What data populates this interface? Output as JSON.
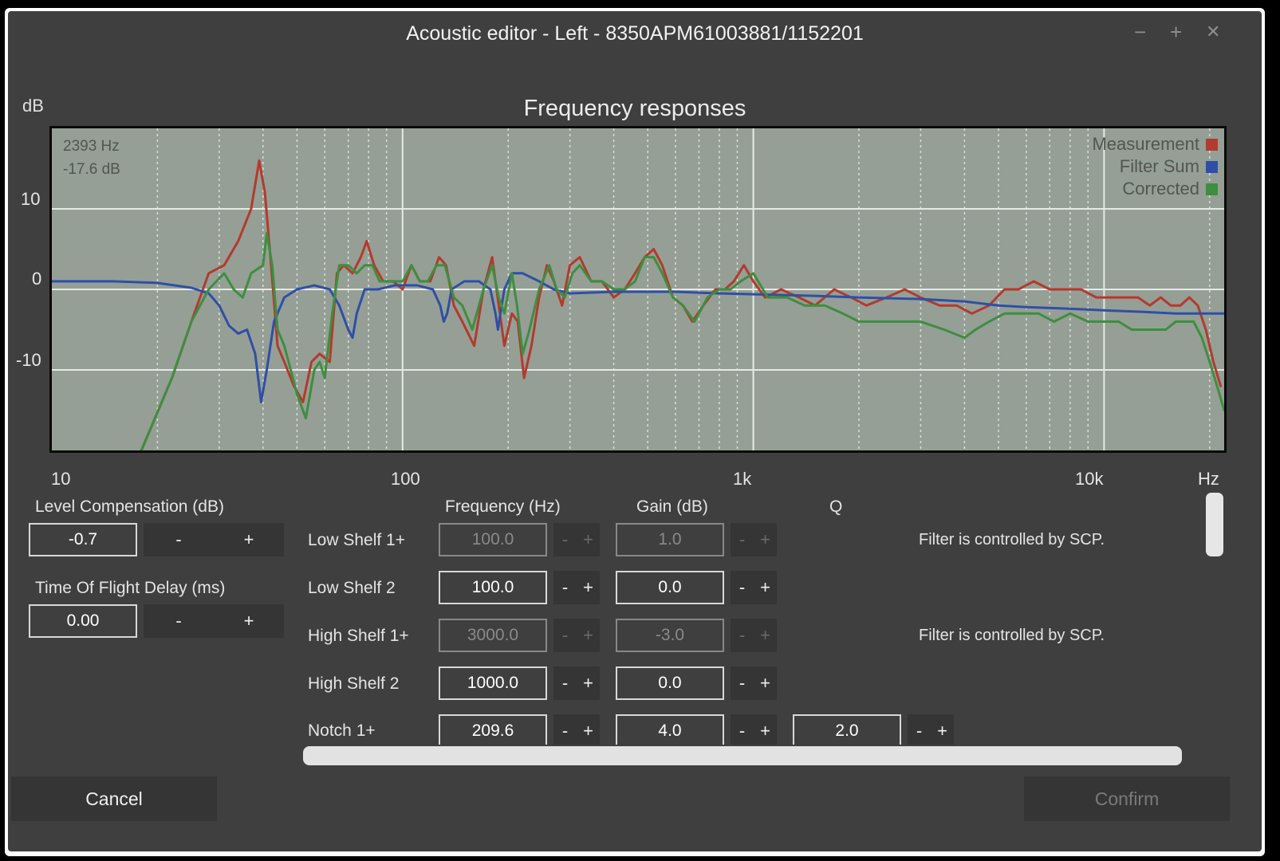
{
  "window": {
    "title": "Acoustic editor - Left - 8350APM61003881/1152201",
    "minimize_label": "−",
    "maximize_label": "+",
    "close_label": "✕"
  },
  "chart_data": {
    "type": "line",
    "title": "Frequency responses",
    "ylabel": "dB",
    "xlabel": "Hz",
    "x_scale": "log",
    "xlim": [
      10,
      22000
    ],
    "ylim": [
      -20,
      20
    ],
    "x_tick_labels": [
      "10",
      "100",
      "1k",
      "10k"
    ],
    "x_tick_values": [
      10,
      100,
      1000,
      10000
    ],
    "y_tick_labels": [
      "10",
      "0",
      "-10"
    ],
    "y_tick_values": [
      10,
      0,
      -10
    ],
    "grid": true,
    "legend_position": "top-right",
    "cursor_readout": {
      "frequency": "2393 Hz",
      "level": "-17.6 dB"
    },
    "series": [
      {
        "name": "Measurement",
        "color": "#b33a2e",
        "points": [
          [
            18,
            -20
          ],
          [
            22,
            -11
          ],
          [
            25,
            -4
          ],
          [
            28,
            2
          ],
          [
            31,
            3
          ],
          [
            34,
            6
          ],
          [
            37,
            10
          ],
          [
            39,
            16
          ],
          [
            40.5,
            12
          ],
          [
            42,
            4
          ],
          [
            44,
            -7
          ],
          [
            46,
            -9
          ],
          [
            49,
            -12
          ],
          [
            52,
            -14
          ],
          [
            55,
            -9
          ],
          [
            58,
            -8
          ],
          [
            62,
            -9
          ],
          [
            65,
            2
          ],
          [
            68,
            3
          ],
          [
            72,
            2
          ],
          [
            76,
            4
          ],
          [
            79,
            6
          ],
          [
            83,
            3
          ],
          [
            88,
            1
          ],
          [
            94,
            1
          ],
          [
            100,
            0
          ],
          [
            106,
            3
          ],
          [
            112,
            1
          ],
          [
            120,
            1
          ],
          [
            127,
            4
          ],
          [
            133,
            3
          ],
          [
            140,
            -2
          ],
          [
            148,
            -4
          ],
          [
            160,
            -7
          ],
          [
            170,
            0
          ],
          [
            180,
            4
          ],
          [
            188,
            -2
          ],
          [
            195,
            -7
          ],
          [
            205,
            -3
          ],
          [
            213,
            -4
          ],
          [
            222,
            -11
          ],
          [
            233,
            -7
          ],
          [
            245,
            -1
          ],
          [
            258,
            3
          ],
          [
            270,
            1
          ],
          [
            285,
            -2
          ],
          [
            300,
            3
          ],
          [
            320,
            4
          ],
          [
            345,
            1
          ],
          [
            370,
            1
          ],
          [
            400,
            -1
          ],
          [
            430,
            0
          ],
          [
            460,
            2
          ],
          [
            490,
            4
          ],
          [
            520,
            5
          ],
          [
            550,
            3
          ],
          [
            590,
            -1
          ],
          [
            630,
            -2
          ],
          [
            670,
            -4
          ],
          [
            720,
            -2
          ],
          [
            780,
            0
          ],
          [
            830,
            0
          ],
          [
            880,
            1
          ],
          [
            940,
            3
          ],
          [
            1000,
            1
          ],
          [
            1080,
            -1
          ],
          [
            1200,
            0
          ],
          [
            1350,
            -1
          ],
          [
            1500,
            -2
          ],
          [
            1700,
            0
          ],
          [
            1900,
            -1
          ],
          [
            2100,
            -2
          ],
          [
            2400,
            -1
          ],
          [
            2700,
            0
          ],
          [
            3000,
            -1
          ],
          [
            3400,
            -2
          ],
          [
            3800,
            -2
          ],
          [
            4200,
            -3
          ],
          [
            4700,
            -2
          ],
          [
            5200,
            0
          ],
          [
            5700,
            0
          ],
          [
            6300,
            1
          ],
          [
            7000,
            0
          ],
          [
            7800,
            0
          ],
          [
            8600,
            0
          ],
          [
            9500,
            -1
          ],
          [
            10500,
            -1
          ],
          [
            11500,
            -1
          ],
          [
            12500,
            -1
          ],
          [
            13500,
            -2
          ],
          [
            14500,
            -1
          ],
          [
            15500,
            -2
          ],
          [
            16500,
            -2
          ],
          [
            17500,
            -1
          ],
          [
            18500,
            -2
          ],
          [
            19500,
            -5
          ],
          [
            20500,
            -9
          ],
          [
            21500,
            -12
          ]
        ]
      },
      {
        "name": "Filter Sum",
        "color": "#2f4fa6",
        "points": [
          [
            10,
            1
          ],
          [
            15,
            1
          ],
          [
            20,
            0.8
          ],
          [
            25,
            0.2
          ],
          [
            28,
            -0.5
          ],
          [
            30,
            -2
          ],
          [
            32,
            -4.5
          ],
          [
            34,
            -5.5
          ],
          [
            36,
            -5
          ],
          [
            38,
            -8
          ],
          [
            39.5,
            -14
          ],
          [
            41,
            -10
          ],
          [
            43,
            -4
          ],
          [
            46,
            -1
          ],
          [
            50,
            0
          ],
          [
            56,
            0.5
          ],
          [
            62,
            0
          ],
          [
            66,
            -2
          ],
          [
            70,
            -5
          ],
          [
            72,
            -6
          ],
          [
            74,
            -3
          ],
          [
            78,
            0
          ],
          [
            85,
            0
          ],
          [
            95,
            0.5
          ],
          [
            110,
            0.5
          ],
          [
            122,
            0
          ],
          [
            128,
            -2
          ],
          [
            131,
            -4
          ],
          [
            134,
            -3
          ],
          [
            138,
            0
          ],
          [
            150,
            1
          ],
          [
            165,
            1
          ],
          [
            178,
            0
          ],
          [
            184,
            -3
          ],
          [
            187,
            -5
          ],
          [
            190,
            -3
          ],
          [
            195,
            0
          ],
          [
            205,
            2
          ],
          [
            220,
            2
          ],
          [
            245,
            1
          ],
          [
            270,
            0
          ],
          [
            300,
            -0.5
          ],
          [
            400,
            -0.3
          ],
          [
            600,
            -0.3
          ],
          [
            800,
            -0.5
          ],
          [
            1000,
            -0.6
          ],
          [
            1500,
            -0.8
          ],
          [
            2000,
            -1
          ],
          [
            3000,
            -1.2
          ],
          [
            4000,
            -1.5
          ],
          [
            5000,
            -2
          ],
          [
            6000,
            -2.2
          ],
          [
            8000,
            -2.4
          ],
          [
            10000,
            -2.6
          ],
          [
            13000,
            -2.8
          ],
          [
            16000,
            -3
          ],
          [
            19000,
            -3
          ],
          [
            22000,
            -3
          ]
        ]
      },
      {
        "name": "Corrected",
        "color": "#3e8e3f",
        "points": [
          [
            18,
            -20
          ],
          [
            22,
            -11
          ],
          [
            25,
            -4
          ],
          [
            28,
            0
          ],
          [
            31,
            2
          ],
          [
            33,
            0
          ],
          [
            35,
            -1
          ],
          [
            37,
            2
          ],
          [
            40,
            3
          ],
          [
            41,
            7
          ],
          [
            42.5,
            3
          ],
          [
            44,
            -5
          ],
          [
            46,
            -7
          ],
          [
            48,
            -10
          ],
          [
            50,
            -13
          ],
          [
            53,
            -16
          ],
          [
            56,
            -10
          ],
          [
            58,
            -9
          ],
          [
            60,
            -11
          ],
          [
            63,
            -3
          ],
          [
            66,
            3
          ],
          [
            70,
            3
          ],
          [
            74,
            2
          ],
          [
            78,
            3
          ],
          [
            82,
            3
          ],
          [
            86,
            1
          ],
          [
            92,
            1
          ],
          [
            100,
            1
          ],
          [
            106,
            3
          ],
          [
            112,
            1
          ],
          [
            118,
            1
          ],
          [
            125,
            3
          ],
          [
            132,
            3
          ],
          [
            140,
            -1
          ],
          [
            148,
            -2
          ],
          [
            158,
            -5
          ],
          [
            170,
            0
          ],
          [
            180,
            3
          ],
          [
            188,
            -1
          ],
          [
            195,
            -3
          ],
          [
            205,
            2
          ],
          [
            212,
            -2
          ],
          [
            220,
            -8
          ],
          [
            230,
            -5
          ],
          [
            245,
            0
          ],
          [
            262,
            3
          ],
          [
            275,
            0
          ],
          [
            290,
            -1
          ],
          [
            305,
            2
          ],
          [
            320,
            3
          ],
          [
            345,
            1
          ],
          [
            370,
            1
          ],
          [
            400,
            0
          ],
          [
            430,
            0
          ],
          [
            460,
            1
          ],
          [
            490,
            4
          ],
          [
            520,
            4
          ],
          [
            550,
            2
          ],
          [
            590,
            -1
          ],
          [
            630,
            -2
          ],
          [
            680,
            -4
          ],
          [
            740,
            -1
          ],
          [
            800,
            0
          ],
          [
            860,
            0
          ],
          [
            920,
            1
          ],
          [
            1000,
            2
          ],
          [
            1100,
            -1
          ],
          [
            1250,
            -1
          ],
          [
            1400,
            -2
          ],
          [
            1600,
            -2
          ],
          [
            1800,
            -3
          ],
          [
            2000,
            -4
          ],
          [
            2300,
            -4
          ],
          [
            2600,
            -4
          ],
          [
            3000,
            -4
          ],
          [
            3500,
            -5
          ],
          [
            4000,
            -6
          ],
          [
            4300,
            -5
          ],
          [
            4700,
            -4
          ],
          [
            5200,
            -3
          ],
          [
            5800,
            -3
          ],
          [
            6500,
            -3
          ],
          [
            7200,
            -4
          ],
          [
            8000,
            -3
          ],
          [
            9000,
            -4
          ],
          [
            10000,
            -4
          ],
          [
            11000,
            -4
          ],
          [
            12000,
            -5
          ],
          [
            13000,
            -5
          ],
          [
            14000,
            -5
          ],
          [
            15000,
            -5
          ],
          [
            16000,
            -4
          ],
          [
            17000,
            -4
          ],
          [
            18000,
            -4
          ],
          [
            19000,
            -6
          ],
          [
            20000,
            -9
          ],
          [
            21000,
            -12
          ],
          [
            22000,
            -15
          ]
        ]
      }
    ]
  },
  "left_panel": {
    "level_compensation": {
      "label": "Level Compensation (dB)",
      "value": "-0.7",
      "minus": "-",
      "plus": "+"
    },
    "time_of_flight": {
      "label": "Time Of Flight Delay (ms)",
      "value": "0.00",
      "minus": "-",
      "plus": "+"
    }
  },
  "filters": {
    "headers": {
      "frequency": "Frequency (Hz)",
      "gain": "Gain (dB)",
      "q": "Q"
    },
    "rows": [
      {
        "name": "Low Shelf 1+",
        "frequency": "100.0",
        "gain": "1.0",
        "q": "",
        "disabled": true,
        "note": "Filter is controlled by SCP."
      },
      {
        "name": "Low Shelf 2",
        "frequency": "100.0",
        "gain": "0.0",
        "q": "",
        "disabled": false,
        "note": ""
      },
      {
        "name": "High Shelf 1+",
        "frequency": "3000.0",
        "gain": "-3.0",
        "q": "",
        "disabled": true,
        "note": "Filter is controlled by SCP."
      },
      {
        "name": "High Shelf 2",
        "frequency": "1000.0",
        "gain": "0.0",
        "q": "",
        "disabled": false,
        "note": ""
      },
      {
        "name": "Notch 1+",
        "frequency": "209.6",
        "gain": "4.0",
        "q": "2.0",
        "disabled": false,
        "note": ""
      }
    ],
    "minus": "-",
    "plus": "+"
  },
  "footer": {
    "cancel_label": "Cancel",
    "confirm_label": "Confirm",
    "confirm_enabled": false
  }
}
